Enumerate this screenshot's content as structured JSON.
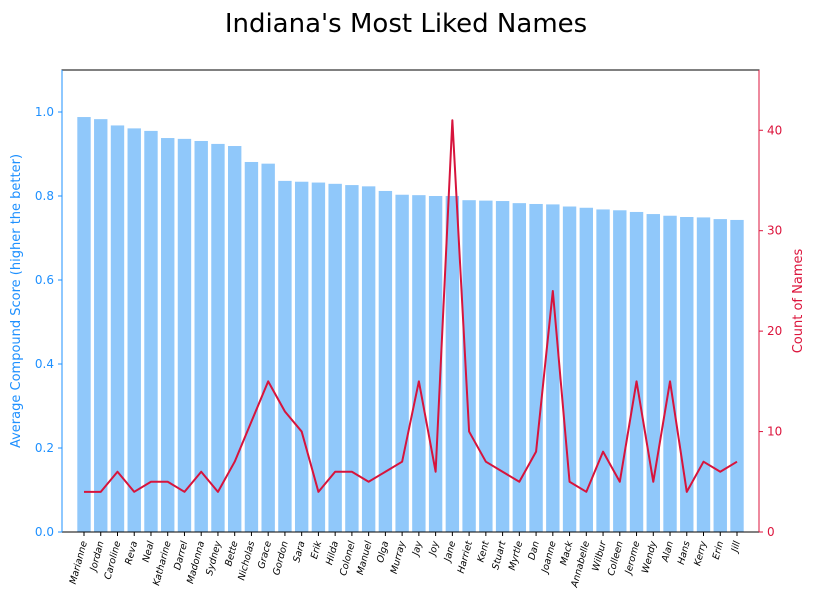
{
  "colors": {
    "bar": "#90c8fa",
    "line": "#d7143c",
    "left_axis": "#1e90ff",
    "right_axis": "#dc143c",
    "frame": "#000000"
  },
  "chart_data": {
    "type": "bar",
    "title": "Indiana's Most Liked Names",
    "xlabel": "",
    "ylabel": "Average Compound Score (higher the better)",
    "y2label": "Count of Names",
    "ylim": [
      0,
      1.1
    ],
    "y2lim": [
      0,
      46
    ],
    "yticks": [
      "0.0",
      "0.2",
      "0.4",
      "0.6",
      "0.8",
      "1.0"
    ],
    "y2ticks": [
      "0",
      "10",
      "20",
      "30",
      "40"
    ],
    "grid": false,
    "categories": [
      "Marianne",
      "Jordan",
      "Caroline",
      "Reva",
      "Neal",
      "Katharine",
      "Darrel",
      "Madonna",
      "Sydney",
      "Bette",
      "Nicholas",
      "Grace",
      "Gordon",
      "Sara",
      "Erik",
      "Hilda",
      "Colonel",
      "Manuel",
      "Olga",
      "Murray",
      "Jay",
      "Joy",
      "Jane",
      "Harriet",
      "Kent",
      "Stuart",
      "Myrtle",
      "Dan",
      "Joanne",
      "Mack",
      "Annabelle",
      "Wilbur",
      "Colleen",
      "Jerome",
      "Wendy",
      "Alan",
      "Hans",
      "Kerry",
      "Erin",
      "Jill"
    ],
    "series": [
      {
        "type": "bar",
        "axis": "left",
        "values": [
          0.988,
          0.983,
          0.968,
          0.961,
          0.955,
          0.938,
          0.936,
          0.931,
          0.924,
          0.919,
          0.881,
          0.877,
          0.836,
          0.834,
          0.832,
          0.829,
          0.826,
          0.823,
          0.812,
          0.803,
          0.802,
          0.8,
          0.8,
          0.79,
          0.789,
          0.788,
          0.783,
          0.781,
          0.78,
          0.775,
          0.772,
          0.768,
          0.766,
          0.762,
          0.757,
          0.753,
          0.75,
          0.749,
          0.745,
          0.743
        ]
      },
      {
        "type": "line",
        "axis": "right",
        "values": [
          4,
          4,
          6,
          4,
          5,
          5,
          4,
          6,
          4,
          7,
          11,
          15,
          12,
          10,
          4,
          6,
          6,
          5,
          6,
          7,
          15,
          6,
          41,
          10,
          7,
          6,
          5,
          8,
          24,
          5,
          4,
          8,
          5,
          15,
          5,
          15,
          4,
          7,
          6,
          7
        ]
      }
    ]
  }
}
